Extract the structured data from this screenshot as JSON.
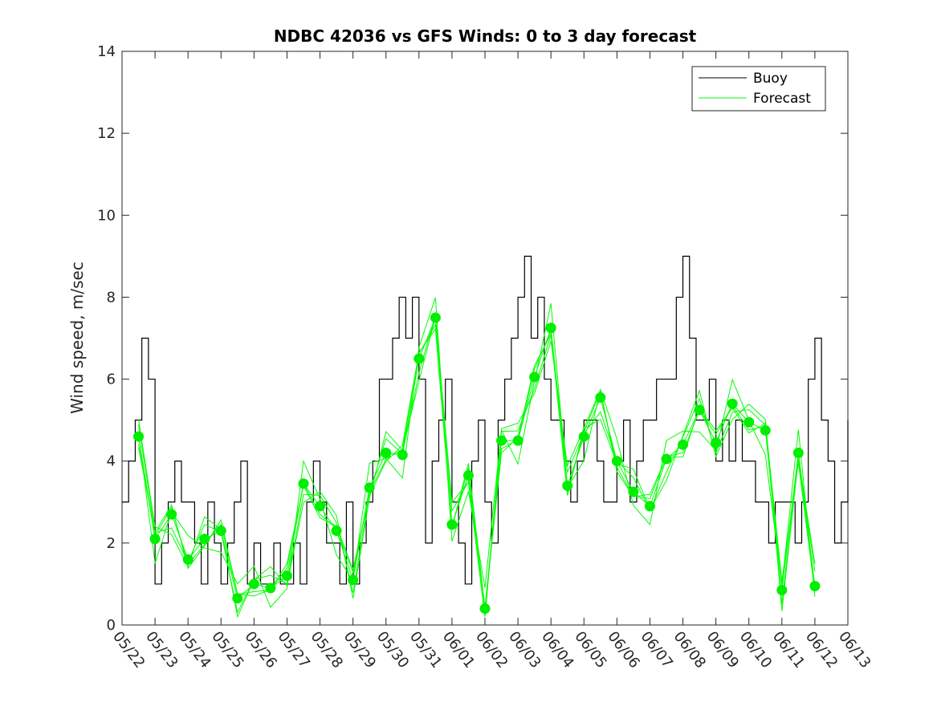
{
  "chart_data": {
    "type": "line",
    "title": "NDBC 42036 vs GFS Winds: 0 to 3 day forecast",
    "xlabel": "",
    "ylabel": "Wind speed, m/sec",
    "ylim": [
      0,
      14
    ],
    "yticks": [
      0,
      2,
      4,
      6,
      8,
      10,
      12,
      14
    ],
    "xlim": [
      "05/22",
      "06/13"
    ],
    "xticks": [
      "05/22",
      "05/23",
      "05/24",
      "05/25",
      "05/26",
      "05/27",
      "05/28",
      "05/29",
      "05/30",
      "05/31",
      "06/01",
      "06/02",
      "06/03",
      "06/04",
      "06/05",
      "06/06",
      "06/07",
      "06/08",
      "06/09",
      "06/10",
      "06/11",
      "06/12",
      "06/13"
    ],
    "legend": {
      "position": "top-right",
      "entries": [
        {
          "label": "Buoy",
          "color": "#000000"
        },
        {
          "label": "Forecast",
          "color": "#00ff00"
        }
      ]
    },
    "grid": false,
    "series": [
      {
        "name": "Buoy",
        "color": "#000000",
        "x": [
          0.0,
          0.2,
          0.4,
          0.6,
          0.8,
          1.0,
          1.2,
          1.4,
          1.6,
          1.8,
          2.0,
          2.2,
          2.4,
          2.6,
          2.8,
          3.0,
          3.2,
          3.4,
          3.6,
          3.8,
          4.0,
          4.2,
          4.4,
          4.6,
          4.8,
          5.0,
          5.2,
          5.4,
          5.6,
          5.8,
          6.0,
          6.2,
          6.4,
          6.6,
          6.8,
          7.0,
          7.2,
          7.4,
          7.6,
          7.8,
          8.0,
          8.2,
          8.4,
          8.6,
          8.8,
          9.0,
          9.2,
          9.4,
          9.6,
          9.8,
          10.0,
          10.2,
          10.4,
          10.6,
          10.8,
          11.0,
          11.2,
          11.4,
          11.6,
          11.8,
          12.0,
          12.2,
          12.4,
          12.6,
          12.8,
          13.0,
          13.2,
          13.4,
          13.6,
          13.8,
          14.0,
          14.2,
          14.4,
          14.6,
          14.8,
          15.0,
          15.2,
          15.4,
          15.6,
          15.8,
          16.0,
          16.2,
          16.4,
          16.6,
          16.8,
          17.0,
          17.2,
          17.4,
          17.6,
          17.8,
          18.0,
          18.2,
          18.4,
          18.6,
          18.8,
          19.0,
          19.2,
          19.4,
          19.6,
          19.8,
          20.0,
          20.2,
          20.4,
          20.6,
          20.8,
          21.0,
          21.2,
          21.4,
          21.6,
          21.8,
          22.0
        ],
        "y": [
          3,
          4,
          5,
          7,
          6,
          1,
          2,
          3,
          4,
          3,
          3,
          2,
          1,
          3,
          2,
          1,
          2,
          3,
          4,
          1,
          2,
          1,
          1,
          2,
          1,
          1,
          2,
          1,
          3,
          4,
          3,
          2,
          2,
          1,
          3,
          1,
          2,
          3,
          4,
          6,
          6,
          7,
          8,
          7,
          8,
          6,
          2,
          4,
          5,
          6,
          3,
          2,
          1,
          4,
          5,
          3,
          2,
          5,
          6,
          7,
          8,
          9,
          7,
          8,
          6,
          5,
          5,
          4,
          3,
          4,
          5,
          5,
          4,
          3,
          3,
          4,
          5,
          3,
          4,
          5,
          5,
          6,
          6,
          6,
          8,
          9,
          7,
          5,
          5,
          6,
          4,
          5,
          4,
          5,
          4,
          4,
          3,
          3,
          2,
          3,
          3,
          3,
          2,
          3,
          6,
          7,
          5,
          4,
          2,
          3,
          5
        ],
        "note": "approximate hourly-ish trace"
      },
      {
        "name": "Forecast",
        "color": "#00ff00",
        "x": [
          0.5,
          1.0,
          1.5,
          2.0,
          2.5,
          3.0,
          3.5,
          4.0,
          4.5,
          5.0,
          5.5,
          6.0,
          6.5,
          7.0,
          7.5,
          8.0,
          8.5,
          9.0,
          9.5,
          10.0,
          10.5,
          11.0,
          11.5,
          12.0,
          12.5,
          13.0,
          13.5,
          14.0,
          14.5,
          15.0,
          15.5,
          16.0,
          16.5,
          17.0,
          17.5,
          18.0,
          18.5,
          19.0,
          19.5,
          20.0,
          20.5,
          21.0
        ],
        "y": [
          4.6,
          2.1,
          2.7,
          1.6,
          2.1,
          2.3,
          0.65,
          1.0,
          0.9,
          1.2,
          3.45,
          2.9,
          2.3,
          1.1,
          3.35,
          4.2,
          4.15,
          6.5,
          7.5,
          2.45,
          3.65,
          0.4,
          4.5,
          4.5,
          6.05,
          7.25,
          3.4,
          4.6,
          5.55,
          4.0,
          3.25,
          2.9,
          4.05,
          4.4,
          5.25,
          4.45,
          5.4,
          4.95,
          4.75,
          0.85,
          4.2,
          0.95
        ]
      }
    ],
    "forecast_markers": {
      "x": [
        0.5,
        1.0,
        1.5,
        2.0,
        2.5,
        3.0,
        3.5,
        4.0,
        4.5,
        5.0,
        5.5,
        6.0,
        6.5,
        7.0,
        7.5,
        8.0,
        8.5,
        9.0,
        9.5,
        10.0,
        10.5,
        11.0,
        11.5,
        12.0,
        12.5,
        13.0,
        13.5,
        14.0,
        14.5,
        15.0,
        15.5,
        16.0,
        16.5,
        17.0,
        17.5,
        18.0,
        18.5,
        19.0,
        19.5,
        20.0,
        20.5,
        21.0
      ],
      "y": [
        4.6,
        2.1,
        2.7,
        1.6,
        2.1,
        2.3,
        0.65,
        1.0,
        0.9,
        1.2,
        3.45,
        2.9,
        2.3,
        1.1,
        3.35,
        4.2,
        4.15,
        6.5,
        7.5,
        2.45,
        3.65,
        0.4,
        4.5,
        4.5,
        6.05,
        7.25,
        3.4,
        4.6,
        5.55,
        4.0,
        3.25,
        2.9,
        4.05,
        4.4,
        5.25,
        4.45,
        5.4,
        4.95,
        4.75,
        0.85,
        4.2,
        0.95
      ],
      "color": "#00ee00"
    }
  }
}
